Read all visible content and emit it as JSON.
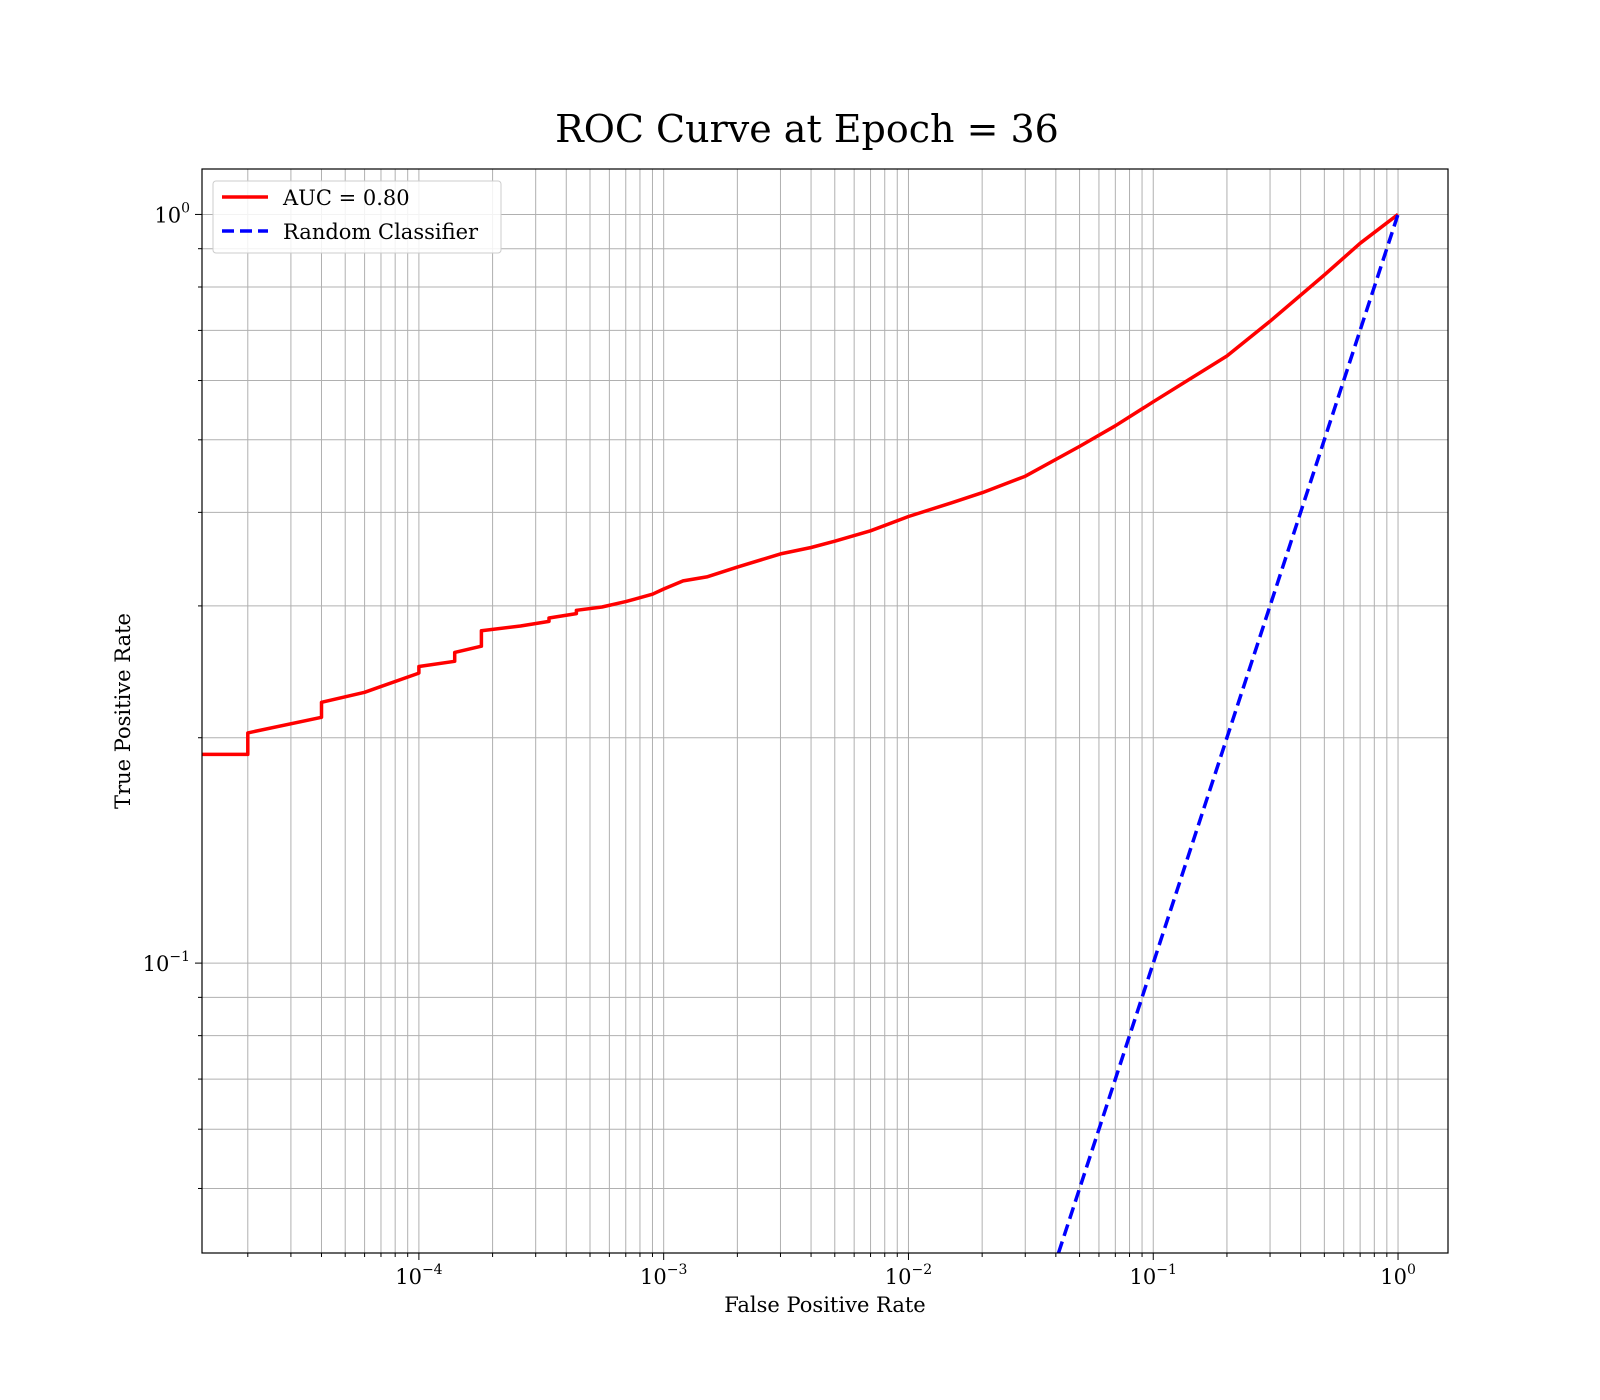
{
  "chart_data": {
    "type": "line",
    "title": "ROC Curve at Epoch = 36",
    "xlabel": "False Positive Rate",
    "ylabel": "True Positive Rate",
    "xscale": "log",
    "yscale": "log",
    "xlim": [
      1.3e-05,
      1.6
    ],
    "ylim": [
      0.041,
      1.15
    ],
    "grid": true,
    "grid_color": "#b0b0b0",
    "legend_position": "top-left",
    "x_ticks": [
      {
        "base": "10",
        "exp": "−4",
        "value": 0.0001
      },
      {
        "base": "10",
        "exp": "−3",
        "value": 0.001
      },
      {
        "base": "10",
        "exp": "−2",
        "value": 0.01
      },
      {
        "base": "10",
        "exp": "−1",
        "value": 0.1
      },
      {
        "base": "10",
        "exp": "0",
        "value": 1
      }
    ],
    "y_ticks": [
      {
        "base": "10",
        "exp": "−1",
        "value": 0.1
      },
      {
        "base": "10",
        "exp": "0",
        "value": 1
      }
    ],
    "series": [
      {
        "name": "AUC = 0.80",
        "color": "#ff0000",
        "dash": "solid",
        "points": [
          [
            1.3e-05,
            0.19
          ],
          [
            2e-05,
            0.19
          ],
          [
            2e-05,
            0.203
          ],
          [
            4e-05,
            0.213
          ],
          [
            4e-05,
            0.223
          ],
          [
            6e-05,
            0.23
          ],
          [
            0.0001,
            0.244
          ],
          [
            0.0001,
            0.249
          ],
          [
            0.00014,
            0.253
          ],
          [
            0.00014,
            0.26
          ],
          [
            0.00018,
            0.265
          ],
          [
            0.00018,
            0.278
          ],
          [
            0.00026,
            0.282
          ],
          [
            0.00034,
            0.286
          ],
          [
            0.00034,
            0.289
          ],
          [
            0.00044,
            0.293
          ],
          [
            0.00044,
            0.296
          ],
          [
            0.00056,
            0.299
          ],
          [
            0.0007,
            0.304
          ],
          [
            0.0009,
            0.311
          ],
          [
            0.001,
            0.316
          ],
          [
            0.0012,
            0.324
          ],
          [
            0.0015,
            0.328
          ],
          [
            0.002,
            0.338
          ],
          [
            0.003,
            0.352
          ],
          [
            0.004,
            0.359
          ],
          [
            0.005,
            0.366
          ],
          [
            0.007,
            0.378
          ],
          [
            0.01,
            0.395
          ],
          [
            0.015,
            0.412
          ],
          [
            0.02,
            0.425
          ],
          [
            0.03,
            0.447
          ],
          [
            0.05,
            0.49
          ],
          [
            0.07,
            0.522
          ],
          [
            0.1,
            0.562
          ],
          [
            0.2,
            0.647
          ],
          [
            0.3,
            0.72
          ],
          [
            0.5,
            0.83
          ],
          [
            0.7,
            0.915
          ],
          [
            1.0,
            1.0
          ]
        ]
      },
      {
        "name": "Random Classifier",
        "color": "#0000ff",
        "dash": "dashed",
        "points": [
          [
            0.041,
            0.041
          ],
          [
            1.0,
            1.0
          ]
        ]
      }
    ]
  }
}
